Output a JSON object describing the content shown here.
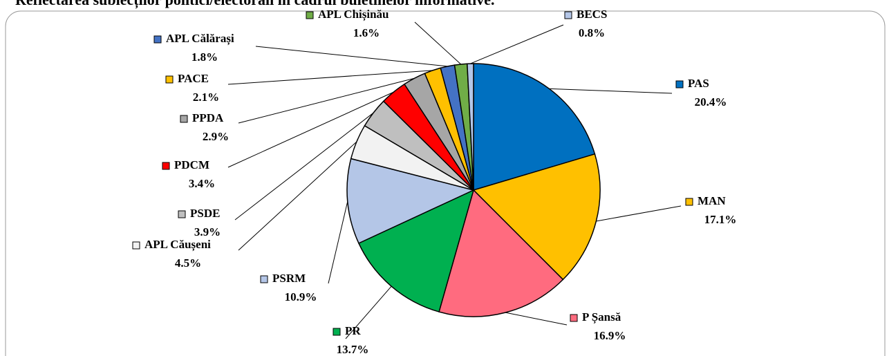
{
  "chart_data": {
    "type": "pie",
    "title": "Reflectarea subiecților politici/electorali în cadrul buletinelor informative.",
    "categories": [
      "PAS",
      "MAN",
      "P Șansă",
      "PR",
      "PSRM",
      "APL Căușeni",
      "PSDE",
      "PDCM",
      "PPDA",
      "PACE",
      "APL Călărași",
      "APL Chișinău",
      "BECS"
    ],
    "values": [
      20.4,
      17.1,
      16.9,
      13.7,
      10.9,
      4.5,
      3.9,
      3.4,
      2.9,
      2.1,
      1.8,
      1.6,
      0.8
    ],
    "value_labels": [
      "20.4%",
      "17.1%",
      "16.9%",
      "13.7%",
      "10.9%",
      "4.5%",
      "3.9%",
      "3.4%",
      "2.9%",
      "2.1%",
      "1.8%",
      "1.6%",
      "0.8%"
    ],
    "colors": [
      "#0070c0",
      "#ffc000",
      "#ff6b7f",
      "#00b050",
      "#b4c6e7",
      "#f2f2f2",
      "#bfbfbf",
      "#ff0000",
      "#a6a6a6",
      "#ffc000",
      "#4472c4",
      "#70ad47",
      "#b4c6e7"
    ]
  }
}
